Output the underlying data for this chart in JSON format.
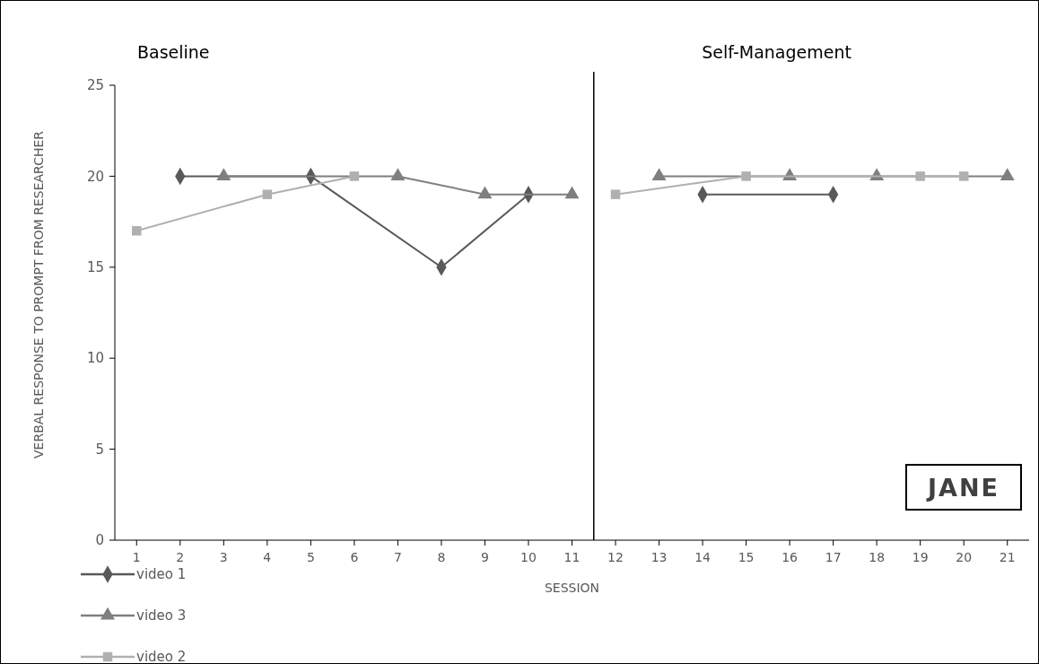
{
  "chart_data": {
    "type": "line",
    "xlabel": "SESSION",
    "ylabel": "VERBAL RESPONSE TO PROMPT FROM RESEARCHER",
    "x": [
      1,
      2,
      3,
      4,
      5,
      6,
      7,
      8,
      9,
      10,
      11,
      12,
      13,
      14,
      15,
      16,
      17,
      18,
      19,
      20,
      21
    ],
    "xlim": [
      0.5,
      21.5
    ],
    "xticks": [
      1,
      2,
      3,
      4,
      5,
      6,
      7,
      8,
      9,
      10,
      11,
      12,
      13,
      14,
      15,
      16,
      17,
      18,
      19,
      20,
      21
    ],
    "ylim": [
      0,
      25
    ],
    "yticks": [
      0,
      5,
      10,
      15,
      20,
      25
    ],
    "series": [
      {
        "name": "video 1",
        "color": "#595959",
        "marker": "diamond",
        "values": [
          null,
          20,
          null,
          null,
          20,
          null,
          null,
          15,
          null,
          19,
          null,
          null,
          null,
          19,
          null,
          null,
          19,
          null,
          null,
          null,
          null
        ]
      },
      {
        "name": "video 3",
        "color": "#7f7f7f",
        "marker": "triangle",
        "values": [
          null,
          null,
          20,
          null,
          null,
          null,
          20,
          null,
          19,
          null,
          19,
          null,
          20,
          null,
          null,
          20,
          null,
          20,
          null,
          null,
          20
        ]
      },
      {
        "name": "video 2",
        "color": "#b0b0b0",
        "marker": "square",
        "values": [
          17,
          null,
          null,
          19,
          null,
          20,
          null,
          null,
          null,
          null,
          null,
          19,
          null,
          null,
          20,
          null,
          null,
          null,
          20,
          20,
          null
        ]
      }
    ],
    "ref_lines": [
      {
        "axis": "x",
        "value": 11.5,
        "color": "#000000"
      }
    ],
    "annotations": [
      "Baseline",
      "Self-Management",
      "JANE"
    ],
    "legend": "bottom left",
    "grid": false
  }
}
